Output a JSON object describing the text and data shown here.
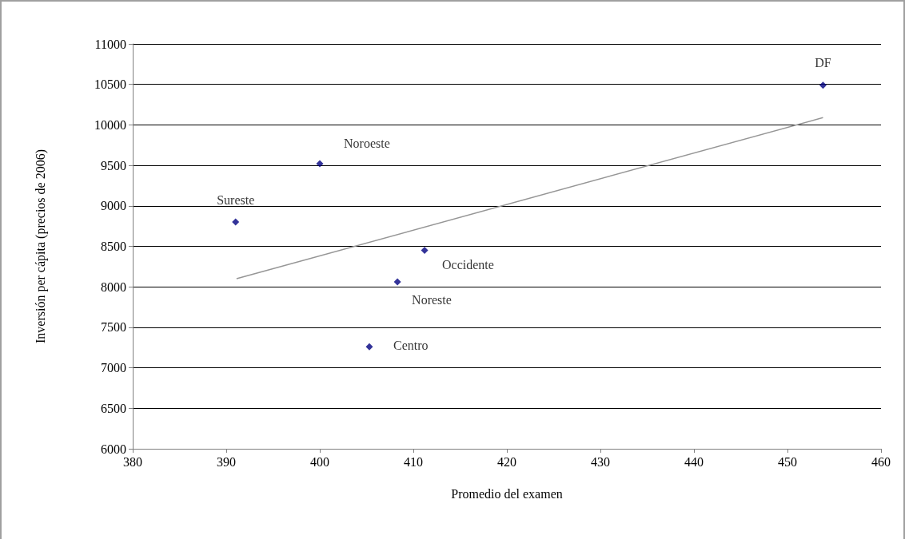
{
  "chart_data": {
    "type": "scatter",
    "xlabel": "Promedio del examen",
    "ylabel": "Inversión per cápita (precios de 2006)",
    "xlim": [
      380,
      460
    ],
    "xticks": [
      380,
      390,
      400,
      410,
      420,
      430,
      440,
      450,
      460
    ],
    "ylim": [
      6000,
      11000
    ],
    "yticks": [
      6000,
      6500,
      7000,
      7500,
      8000,
      8500,
      9000,
      9500,
      10000,
      10500,
      11000
    ],
    "grid": "y",
    "marker": "diamond",
    "series": [
      {
        "color": "#000080",
        "x": [
          391,
          400,
          405.3,
          408.3,
          411.2,
          453.8
        ],
        "values": [
          8800,
          9520,
          7260,
          8060,
          8450,
          10490
        ]
      },
      {
        "type": "line",
        "marker": "none",
        "color": "#969696",
        "x": [
          391.1,
          453.8
        ],
        "values": [
          8100,
          10090
        ]
      }
    ],
    "annotations": [
      {
        "text": "Sureste",
        "x": 391,
        "y": 8800
      },
      {
        "text": "Noroeste",
        "x": 400,
        "y": 9520
      },
      {
        "text": "Centro",
        "x": 405.3,
        "y": 7260
      },
      {
        "text": "Noreste",
        "x": 408.3,
        "y": 8060
      },
      {
        "text": "Occidente",
        "x": 411.2,
        "y": 8450
      },
      {
        "text": "DF",
        "x": 453.8,
        "y": 10490
      }
    ]
  }
}
